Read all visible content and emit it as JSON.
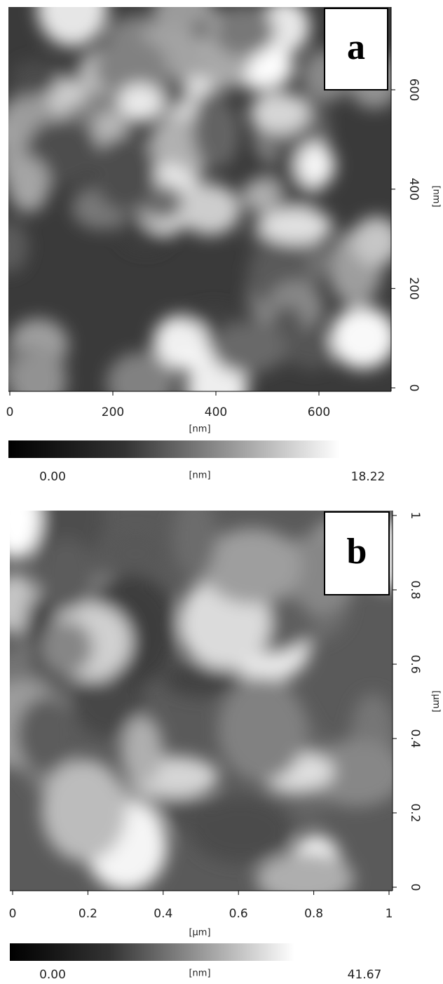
{
  "panels": [
    {
      "label": "a",
      "xticks": [
        0,
        200,
        400,
        600
      ],
      "yticks": [
        0,
        200,
        400,
        600
      ],
      "x_unit": "[nm]",
      "y_unit": "[nm]",
      "colorbar": {
        "min": "0.00",
        "unit": "[nm]",
        "max": "18.22"
      }
    },
    {
      "label": "b",
      "xticks": [
        0,
        0.2,
        0.4,
        0.6,
        0.8,
        1
      ],
      "yticks": [
        0,
        0.2,
        0.4,
        0.6,
        0.8,
        1
      ],
      "x_unit": "[µm]",
      "y_unit": "[µm]",
      "colorbar": {
        "min": "0.00",
        "unit": "[nm]",
        "max": "41.67"
      }
    }
  ]
}
